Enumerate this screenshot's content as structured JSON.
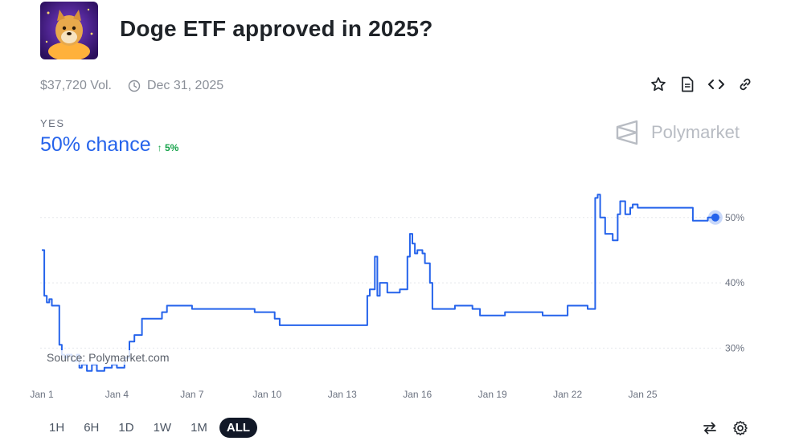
{
  "market": {
    "title": "Doge ETF approved in 2025?",
    "volume": "$37,720 Vol.",
    "end_date": "Dec 31, 2025",
    "outcome": "YES",
    "chance": "50% chance",
    "delta": "↑ 5%",
    "icon": "doge-avatar"
  },
  "brand": {
    "name": "Polymarket",
    "icon": "polymarket-logo-icon"
  },
  "actions": [
    "star-icon",
    "document-icon",
    "code-embed-icon",
    "link-icon"
  ],
  "source": "Source: Polymarket.com",
  "timeframes": [
    {
      "label": "1H",
      "active": false
    },
    {
      "label": "6H",
      "active": false
    },
    {
      "label": "1D",
      "active": false
    },
    {
      "label": "1W",
      "active": false
    },
    {
      "label": "1M",
      "active": false
    },
    {
      "label": "ALL",
      "active": true
    }
  ],
  "bottom_actions": [
    "swap-icon",
    "settings-gear-icon"
  ],
  "colors": {
    "accent": "#2563eb",
    "delta": "#16a34a",
    "grid": "#e5e7eb",
    "tf_active_bg": "#111827"
  },
  "chart_data": {
    "type": "line",
    "title": "",
    "xlabel": "",
    "ylabel": "",
    "x_ticks": [
      {
        "label": "Jan 1",
        "day": 1
      },
      {
        "label": "Jan 4",
        "day": 4
      },
      {
        "label": "Jan 7",
        "day": 7
      },
      {
        "label": "Jan 10",
        "day": 10
      },
      {
        "label": "Jan 13",
        "day": 13
      },
      {
        "label": "Jan 16",
        "day": 16
      },
      {
        "label": "Jan 19",
        "day": 19
      },
      {
        "label": "Jan 22",
        "day": 22
      },
      {
        "label": "Jan 25",
        "day": 25
      }
    ],
    "y_ticks": [
      {
        "label": "30%",
        "value": 30
      },
      {
        "label": "40%",
        "value": 40
      },
      {
        "label": "50%",
        "value": 50
      }
    ],
    "xlim": [
      1,
      28
    ],
    "ylim": [
      25,
      56
    ],
    "grid": true,
    "series": [
      {
        "name": "",
        "x": [
          1.0,
          1.1,
          1.2,
          1.3,
          1.4,
          1.6,
          1.7,
          1.8,
          1.9,
          2.0,
          2.2,
          2.4,
          2.5,
          2.6,
          2.8,
          3.0,
          3.2,
          3.5,
          3.8,
          4.0,
          4.3,
          4.5,
          4.7,
          5.0,
          5.2,
          5.5,
          5.8,
          6.0,
          6.3,
          6.6,
          7.0,
          7.5,
          8.0,
          9.0,
          9.5,
          10.0,
          10.3,
          10.5,
          11.0,
          12.0,
          13.0,
          13.5,
          13.9,
          14.0,
          14.1,
          14.2,
          14.3,
          14.4,
          14.5,
          14.6,
          14.8,
          15.0,
          15.3,
          15.5,
          15.6,
          15.7,
          15.8,
          15.9,
          16.0,
          16.2,
          16.3,
          16.5,
          16.6,
          16.8,
          17.0,
          17.3,
          17.5,
          17.8,
          18.2,
          18.5,
          18.8,
          19.0,
          19.5,
          19.8,
          20.0,
          20.3,
          20.5,
          20.8,
          21.0,
          21.3,
          21.8,
          22.0,
          22.4,
          22.6,
          22.8,
          22.9,
          23.0,
          23.1,
          23.2,
          23.3,
          23.5,
          23.6,
          23.8,
          24.0,
          24.1,
          24.2,
          24.3,
          24.5,
          24.6,
          24.8,
          25.0,
          25.5,
          26.0,
          26.5,
          26.7,
          27.0,
          27.2,
          27.4,
          27.6,
          27.9
        ],
        "values": [
          45.0,
          38.0,
          37.0,
          37.5,
          36.5,
          36.5,
          30.5,
          29.0,
          28.5,
          29.0,
          28.0,
          29.0,
          27.0,
          27.5,
          26.5,
          27.5,
          26.5,
          27.0,
          27.5,
          27.0,
          28.5,
          31.0,
          32.0,
          34.5,
          34.5,
          34.5,
          35.5,
          36.5,
          36.5,
          36.5,
          36.0,
          36.0,
          36.0,
          36.0,
          35.5,
          35.5,
          34.5,
          33.5,
          33.5,
          33.5,
          33.5,
          33.5,
          33.5,
          38.0,
          39.0,
          39.0,
          44.0,
          38.0,
          40.0,
          40.0,
          38.5,
          38.5,
          39.0,
          39.0,
          44.0,
          47.5,
          46.0,
          44.5,
          45.0,
          44.5,
          43.0,
          40.0,
          36.0,
          36.0,
          36.0,
          36.0,
          36.5,
          36.5,
          36.0,
          35.0,
          35.0,
          35.0,
          35.5,
          35.5,
          35.5,
          35.5,
          35.5,
          35.5,
          35.0,
          35.0,
          35.0,
          36.5,
          36.5,
          36.5,
          36.0,
          36.0,
          36.0,
          53.0,
          53.5,
          50.0,
          47.5,
          47.5,
          46.5,
          50.5,
          52.5,
          52.5,
          50.5,
          51.5,
          52.0,
          51.5,
          51.5,
          51.5,
          51.5,
          51.5,
          51.5,
          49.5,
          49.5,
          49.5,
          50.0,
          50.0
        ]
      }
    ],
    "last_point_label": "50%"
  }
}
